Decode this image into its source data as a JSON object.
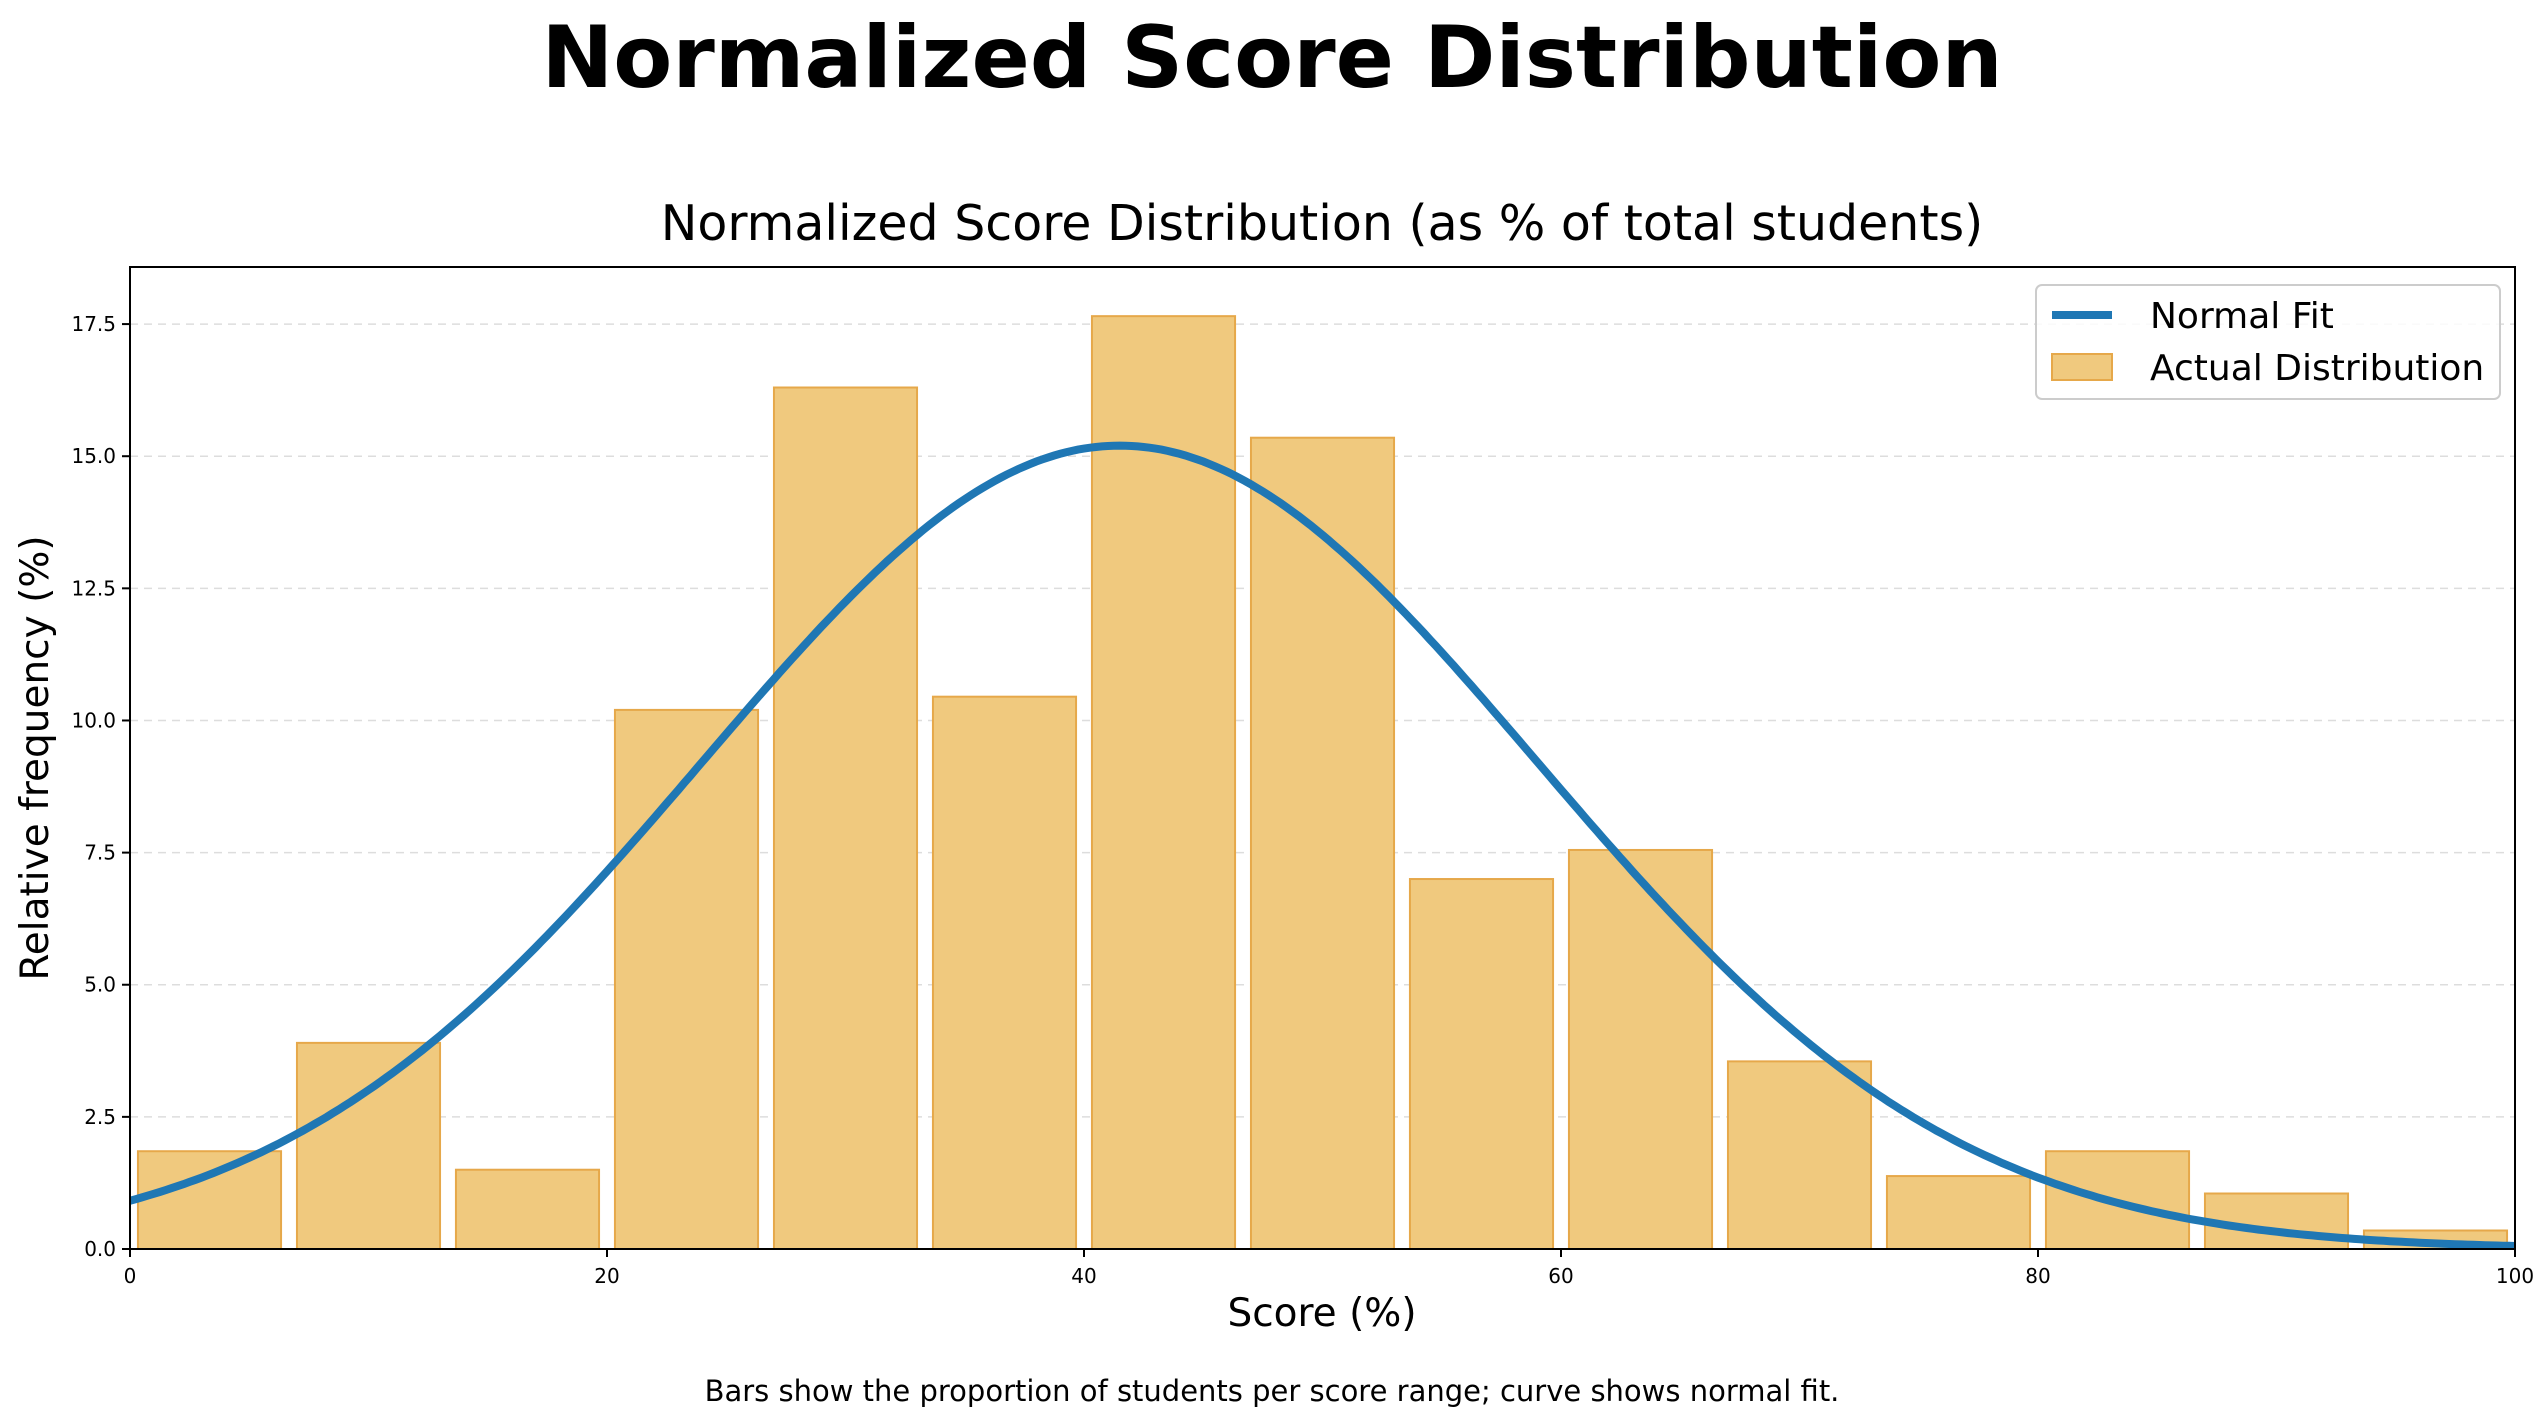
{
  "suptitle": "Normalized Score Distribution",
  "caption": "Bars show the proportion of students per score range; curve shows normal fit.",
  "chart_data": {
    "type": "bar",
    "title": "Normalized Score Distribution (as % of total students)",
    "xlabel": "Score (%)",
    "ylabel": "Relative frequency (%)",
    "xlim": [
      0,
      100
    ],
    "ylim": [
      0,
      18.58
    ],
    "xticks": [
      "0",
      "20",
      "40",
      "60",
      "80",
      "100"
    ],
    "yticks": [
      "0.0",
      "2.5",
      "5.0",
      "7.5",
      "10.0",
      "12.5",
      "15.0",
      "17.5"
    ],
    "grid": "y-dashed",
    "legend_placement": "top-right",
    "bin_edges": [
      0,
      6.667,
      13.333,
      20,
      26.667,
      33.333,
      40,
      46.667,
      53.333,
      60,
      66.667,
      73.333,
      80,
      86.667,
      93.333,
      100
    ],
    "series": [
      {
        "name": "Actual Distribution",
        "type": "bar",
        "color": "#f0c97e",
        "edge_color": "#e6a84a",
        "values": [
          1.85,
          3.9,
          1.5,
          10.2,
          16.3,
          10.45,
          17.65,
          15.35,
          7.0,
          7.55,
          3.55,
          1.38,
          1.85,
          1.05,
          0.35
        ]
      },
      {
        "name": "Normal Fit",
        "type": "line",
        "color": "#1f77b4",
        "mean": 41.5,
        "std": 17.5,
        "peak": 15.2
      }
    ]
  }
}
